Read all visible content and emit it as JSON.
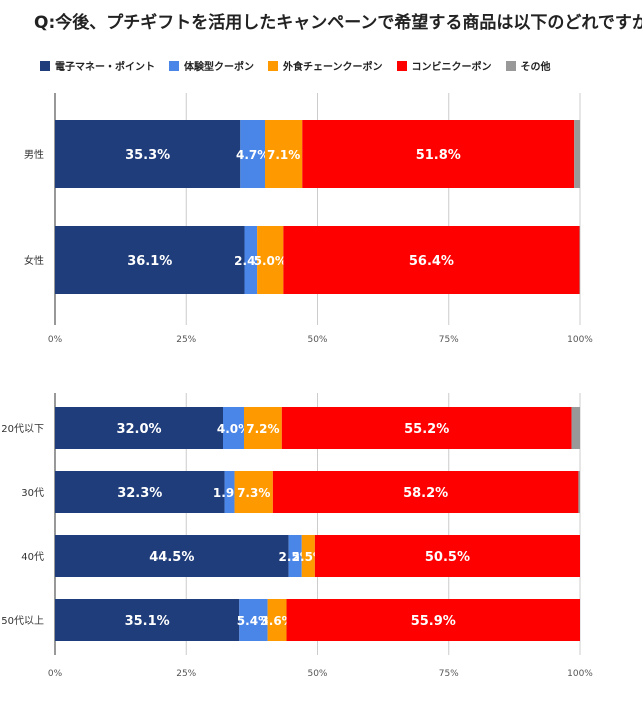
{
  "title": "Q:今後、プチギフトを活用したキャンペーンで希望する商品は以下のどれですか？",
  "legend": [
    {
      "name": "電子マネー・ポイント",
      "color": "#1f3d7a"
    },
    {
      "name": "体験型クーポン",
      "color": "#4a86e8"
    },
    {
      "name": "外食チェーンクーポン",
      "color": "#ff9900"
    },
    {
      "name": "コンビニクーポン",
      "color": "#ff0000"
    },
    {
      "name": "その他",
      "color": "#999999"
    }
  ],
  "chart_data": [
    {
      "type": "bar",
      "orientation": "horizontal-stacked-100",
      "categories": [
        "男性",
        "女性"
      ],
      "series": [
        {
          "name": "電子マネー・ポイント",
          "values": [
            35.3,
            36.1
          ]
        },
        {
          "name": "体験型クーポン",
          "values": [
            4.7,
            2.4
          ]
        },
        {
          "name": "外食チェーンクーポン",
          "values": [
            7.1,
            5.0
          ]
        },
        {
          "name": "コンビニクーポン",
          "values": [
            51.8,
            56.4
          ]
        },
        {
          "name": "その他",
          "values": [
            1.1,
            0.1
          ]
        }
      ],
      "xlim": [
        0,
        100
      ],
      "xticks": [
        "0%",
        "25%",
        "50%",
        "75%",
        "100%"
      ]
    },
    {
      "type": "bar",
      "orientation": "horizontal-stacked-100",
      "categories": [
        "20代以下",
        "30代",
        "40代",
        "50代以上"
      ],
      "series": [
        {
          "name": "電子マネー・ポイント",
          "values": [
            32.0,
            32.3,
            44.5,
            35.1
          ]
        },
        {
          "name": "体験型クーポン",
          "values": [
            4.0,
            1.9,
            2.5,
            5.4
          ]
        },
        {
          "name": "外食チェーンクーポン",
          "values": [
            7.2,
            7.3,
            2.5,
            3.6
          ]
        },
        {
          "name": "コンビニクーポン",
          "values": [
            55.2,
            58.2,
            50.5,
            55.9
          ]
        },
        {
          "name": "その他",
          "values": [
            1.6,
            0.3,
            0.0,
            0.0
          ]
        }
      ],
      "xlim": [
        0,
        100
      ],
      "xticks": [
        "0%",
        "25%",
        "50%",
        "75%",
        "100%"
      ]
    }
  ]
}
